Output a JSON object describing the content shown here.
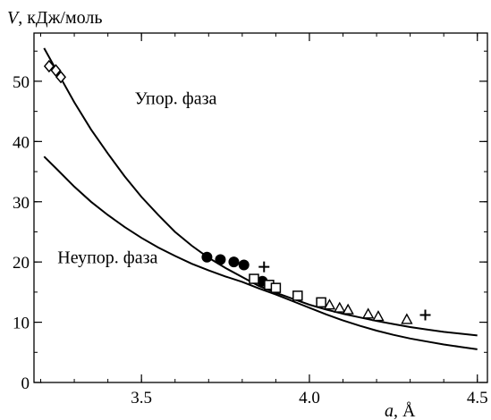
{
  "chart_data": {
    "type": "scatter",
    "ylabel_var": "V",
    "ylabel_unit": ", кДж/моль",
    "xlabel_var": "a",
    "xlabel_unit": ", Å",
    "xlim": [
      3.18,
      4.53
    ],
    "ylim": [
      0,
      58
    ],
    "x_ticks": [
      3.5,
      4.0,
      4.5
    ],
    "x_tick_labels": [
      "3.5",
      "4.0",
      "4.5"
    ],
    "y_ticks": [
      0,
      10,
      20,
      30,
      40,
      50
    ],
    "y_tick_labels": [
      "0",
      "10",
      "20",
      "30",
      "40",
      "50"
    ],
    "x_minor_step": 0.1,
    "y_minor_step": 5,
    "grid": false,
    "annotations": [
      {
        "text": "Упор. фаза",
        "x": 3.48,
        "y": 46.2
      },
      {
        "text": "Неупор. фаза",
        "x": 3.25,
        "y": 19.8
      }
    ],
    "curves": [
      {
        "label": "Упор. фаза",
        "points": [
          [
            3.21,
            55.5
          ],
          [
            3.25,
            51.5
          ],
          [
            3.3,
            46.5
          ],
          [
            3.35,
            42.0
          ],
          [
            3.4,
            38.0
          ],
          [
            3.45,
            34.2
          ],
          [
            3.5,
            30.8
          ],
          [
            3.55,
            27.8
          ],
          [
            3.6,
            25.0
          ],
          [
            3.65,
            22.7
          ],
          [
            3.7,
            20.7
          ],
          [
            3.75,
            19.0
          ],
          [
            3.8,
            17.5
          ],
          [
            3.85,
            16.0
          ],
          [
            3.9,
            14.9
          ],
          [
            3.95,
            13.9
          ],
          [
            4.0,
            12.9
          ],
          [
            4.05,
            12.1
          ],
          [
            4.1,
            11.4
          ],
          [
            4.15,
            10.8
          ],
          [
            4.2,
            10.2
          ],
          [
            4.25,
            9.7
          ],
          [
            4.3,
            9.2
          ],
          [
            4.35,
            8.8
          ],
          [
            4.4,
            8.4
          ],
          [
            4.45,
            8.1
          ],
          [
            4.5,
            7.8
          ]
        ]
      },
      {
        "label": "Неупор. фаза",
        "points": [
          [
            3.21,
            37.5
          ],
          [
            3.25,
            35.3
          ],
          [
            3.3,
            32.5
          ],
          [
            3.35,
            30.0
          ],
          [
            3.4,
            27.8
          ],
          [
            3.45,
            25.8
          ],
          [
            3.5,
            24.0
          ],
          [
            3.55,
            22.4
          ],
          [
            3.6,
            21.0
          ],
          [
            3.65,
            19.7
          ],
          [
            3.7,
            18.6
          ],
          [
            3.75,
            17.6
          ],
          [
            3.8,
            16.7
          ],
          [
            3.85,
            15.6
          ],
          [
            3.9,
            14.6
          ],
          [
            3.95,
            13.5
          ],
          [
            4.0,
            12.4
          ],
          [
            4.05,
            11.3
          ],
          [
            4.1,
            10.3
          ],
          [
            4.15,
            9.4
          ],
          [
            4.2,
            8.6
          ],
          [
            4.25,
            7.9
          ],
          [
            4.3,
            7.3
          ],
          [
            4.35,
            6.8
          ],
          [
            4.4,
            6.3
          ],
          [
            4.45,
            5.9
          ],
          [
            4.5,
            5.5
          ]
        ]
      }
    ],
    "markers": [
      {
        "symbol": "diamond",
        "points": [
          [
            3.225,
            52.5
          ],
          [
            3.245,
            51.8
          ],
          [
            3.26,
            50.7
          ]
        ]
      },
      {
        "symbol": "circle",
        "points": [
          [
            3.695,
            20.8
          ],
          [
            3.735,
            20.4
          ],
          [
            3.775,
            20.0
          ],
          [
            3.805,
            19.5
          ],
          [
            3.86,
            16.8
          ]
        ]
      },
      {
        "symbol": "plus",
        "points": [
          [
            3.865,
            19.2
          ],
          [
            4.345,
            11.2
          ]
        ]
      },
      {
        "symbol": "square",
        "points": [
          [
            3.835,
            17.2
          ],
          [
            3.88,
            16.2
          ],
          [
            3.9,
            15.7
          ],
          [
            3.965,
            14.4
          ],
          [
            4.035,
            13.3
          ]
        ]
      },
      {
        "symbol": "triangle",
        "points": [
          [
            4.06,
            12.8
          ],
          [
            4.09,
            12.3
          ],
          [
            4.115,
            12.0
          ],
          [
            4.175,
            11.3
          ],
          [
            4.205,
            10.9
          ],
          [
            4.29,
            10.4
          ]
        ]
      }
    ]
  }
}
